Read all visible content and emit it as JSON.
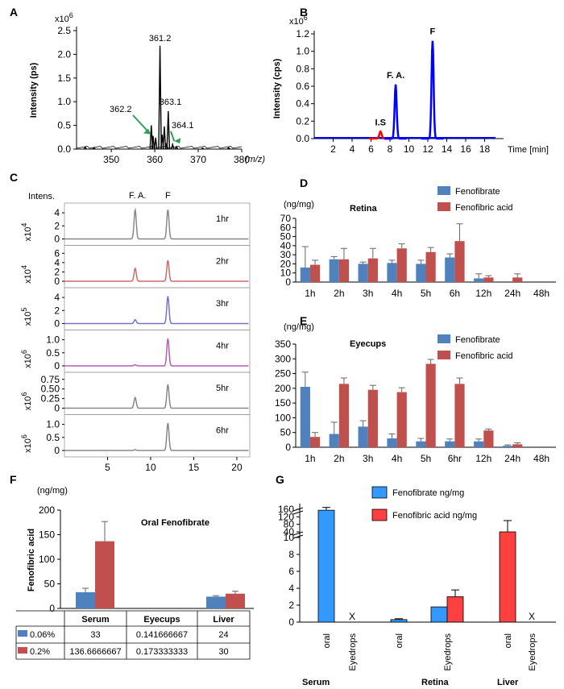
{
  "panel_labels": {
    "a": "A",
    "b": "B",
    "c": "C",
    "d": "D",
    "e": "E",
    "f": "F",
    "g": "G"
  },
  "colors": {
    "fenofibrate": "#4f81bd",
    "fenofibric": "#c0504d",
    "g_blue": "#3399ff",
    "g_red": "#ff4040",
    "trace_blue": "#0000ff",
    "trace_red": "#ff0000"
  },
  "chart_data": [
    {
      "id": "A",
      "type": "line",
      "ylabel": "Intensity (ps)",
      "y_multiplier": "x10",
      "y_multiplier_exp": "6",
      "xlabel": "(m/z)",
      "xlim": [
        342,
        380
      ],
      "ylim": [
        0,
        2.5
      ],
      "xticks": [
        "350",
        "360",
        "370",
        "380"
      ],
      "yticks": [
        "0.0",
        "0.5",
        "1.0",
        "1.5",
        "2.0",
        "2.5"
      ],
      "peaks": [
        {
          "x": 359.2,
          "y": 0.5
        },
        {
          "x": 359.6,
          "y": 0.28
        },
        {
          "x": 360.2,
          "y": 0.24
        },
        {
          "x": 361.2,
          "y": 2.18
        },
        {
          "x": 361.7,
          "y": 0.3
        },
        {
          "x": 362.2,
          "y": 0.48
        },
        {
          "x": 362.7,
          "y": 0.12
        },
        {
          "x": 363.1,
          "y": 0.8
        },
        {
          "x": 364.1,
          "y": 0.1
        },
        {
          "x": 365.0,
          "y": 0.05
        },
        {
          "x": 344.0,
          "y": 0.04
        },
        {
          "x": 346.0,
          "y": 0.03
        },
        {
          "x": 377.0,
          "y": 0.03
        },
        {
          "x": 371.0,
          "y": 0.02
        }
      ],
      "annotations": [
        "361.2",
        "362.2",
        "363.1",
        "364.1"
      ]
    },
    {
      "id": "B",
      "type": "line",
      "ylabel": "Intensity (cps)",
      "y_multiplier": "x10",
      "y_multiplier_exp": "6",
      "xlabel": "Time [min]",
      "xlim": [
        0,
        20
      ],
      "ylim": [
        0,
        1.2
      ],
      "xticks": [
        "2",
        "4",
        "6",
        "8",
        "10",
        "12",
        "14",
        "16",
        "18"
      ],
      "yticks": [
        "0.0",
        "0.2",
        "0.4",
        "0.6",
        "0.8",
        "1.0",
        "1.2"
      ],
      "series": [
        {
          "label": "I.S",
          "color": "red",
          "peak_x": 7.0,
          "peak_y": 0.08,
          "width": 0.25
        },
        {
          "label": "F. A.",
          "color": "blue",
          "peak_x": 8.6,
          "peak_y": 0.62,
          "width": 0.22
        },
        {
          "label": "F",
          "color": "blue",
          "peak_x": 12.5,
          "peak_y": 1.12,
          "width": 0.22
        }
      ]
    },
    {
      "id": "C",
      "type": "line",
      "ylabel": "Intens.",
      "peak_labels": [
        "F. A.",
        "F"
      ],
      "xticks": [
        "5",
        "10",
        "15",
        "20"
      ],
      "xlim": [
        0,
        21.5
      ],
      "rows": [
        {
          "time": "1hr",
          "mult": "x10",
          "exp": "4",
          "yticks": [
            "4",
            "2",
            "0"
          ],
          "ymax": 5,
          "color": "#888888",
          "fa": 4.5,
          "f": 4.5
        },
        {
          "time": "2hr",
          "mult": "x10",
          "exp": "4",
          "yticks": [
            "6",
            "4",
            "2",
            "0"
          ],
          "ymax": 7,
          "color": "#cc6b6b",
          "fa": 2.8,
          "f": 4.5
        },
        {
          "time": "3hr",
          "mult": "x10",
          "exp": "5",
          "yticks": [
            "4",
            "2",
            "0"
          ],
          "ymax": 5,
          "color": "#7373cc",
          "fa": 0.6,
          "f": 4.2
        },
        {
          "time": "4hr",
          "mult": "x10",
          "exp": "6",
          "yticks": [
            "1.0",
            "0.5",
            "0"
          ],
          "ymax": 1.25,
          "color": "#b35fb3",
          "fa": 0.04,
          "f": 1.05
        },
        {
          "time": "5hr",
          "mult": "x10",
          "exp": "6",
          "yticks": [
            "0.75",
            "0.50",
            "0.25",
            "0"
          ],
          "ymax": 0.85,
          "color": "#888888",
          "fa": 0.28,
          "f": 0.62
        },
        {
          "time": "6hr",
          "mult": "x10",
          "exp": "6",
          "yticks": [
            "1.0",
            "0.5",
            "0"
          ],
          "ymax": 1.25,
          "color": "#888888",
          "fa": 0.03,
          "f": 1.05
        }
      ]
    },
    {
      "id": "D",
      "type": "bar",
      "unit": "(ng/mg)",
      "title": "Retina",
      "categories": [
        "1h",
        "2h",
        "3h",
        "4h",
        "5h",
        "6h",
        "12h",
        "24h",
        "48h"
      ],
      "ylim": [
        0,
        70
      ],
      "yticks": [
        "0",
        "10",
        "20",
        "30",
        "40",
        "50",
        "60",
        "70"
      ],
      "series": [
        {
          "name": "Fenofibrate",
          "values": [
            16,
            25,
            20,
            21,
            20,
            27,
            4,
            0,
            0
          ],
          "errors": [
            23,
            3,
            2,
            3,
            4,
            4,
            5,
            0,
            0
          ]
        },
        {
          "name": "Fenofibric acid",
          "values": [
            19,
            25,
            26,
            37,
            33,
            45,
            5,
            5,
            0
          ],
          "errors": [
            5,
            12,
            11,
            5,
            5,
            19,
            2,
            4,
            0
          ]
        }
      ]
    },
    {
      "id": "E",
      "type": "bar",
      "unit": "(ng/mg)",
      "title": "Eyecups",
      "categories": [
        "1h",
        "2h",
        "3h",
        "4h",
        "5h",
        "6hr",
        "12h",
        "24h",
        "48h"
      ],
      "ylim": [
        0,
        350
      ],
      "yticks": [
        "0",
        "50",
        "100",
        "150",
        "200",
        "250",
        "300",
        "350"
      ],
      "series": [
        {
          "name": "Fenofibrate",
          "values": [
            205,
            45,
            70,
            30,
            20,
            20,
            20,
            5,
            0
          ],
          "errors": [
            50,
            40,
            20,
            15,
            10,
            8,
            8,
            3,
            0
          ]
        },
        {
          "name": "Fenofibric acid",
          "values": [
            35,
            215,
            195,
            187,
            283,
            215,
            57,
            10,
            0
          ],
          "errors": [
            15,
            20,
            15,
            15,
            15,
            20,
            5,
            5,
            0
          ]
        }
      ]
    },
    {
      "id": "F",
      "type": "bar",
      "unit": "(ng/mg)",
      "title": "Oral Fenofibrate",
      "ylabel": "Fenofibric acid",
      "categories": [
        "Serum",
        "Eyecups",
        "Liver"
      ],
      "ylim": [
        0,
        200
      ],
      "yticks": [
        "0",
        "50",
        "100",
        "150",
        "200"
      ],
      "series": [
        {
          "name": "0.06%",
          "values": [
            33,
            0.141666667,
            24
          ],
          "errors": [
            8,
            0,
            2
          ]
        },
        {
          "name": "0.2%",
          "values": [
            136.6666667,
            0.173333333,
            30
          ],
          "errors": [
            40,
            0,
            5
          ]
        }
      ],
      "table": [
        [
          "33",
          "0.141666667",
          "24"
        ],
        [
          "136.6666667",
          "0.173333333",
          "30"
        ]
      ]
    },
    {
      "id": "G",
      "type": "bar",
      "categories": [
        "oral",
        "Eyedrops",
        "oral",
        "Eyedrops",
        "oral",
        "Eyedrops"
      ],
      "groups": [
        "Serum",
        "Retina",
        "Liver"
      ],
      "yticks": [
        "0",
        "2",
        "4",
        "6",
        "8",
        "10",
        "40",
        "80",
        "120",
        "160"
      ],
      "series": [
        {
          "name": "Fenofibrate ng/mg",
          "values": [
            155,
            null,
            0.3,
            1.8,
            0,
            null
          ],
          "errors": [
            15,
            0,
            0.1,
            0,
            0,
            0
          ]
        },
        {
          "name": "Fenofibric acid ng/mg",
          "values": [
            0,
            null,
            0,
            3,
            40,
            null
          ],
          "errors": [
            0,
            0,
            0,
            0.8,
            85,
            0
          ]
        }
      ],
      "missing_mark": "X"
    }
  ]
}
